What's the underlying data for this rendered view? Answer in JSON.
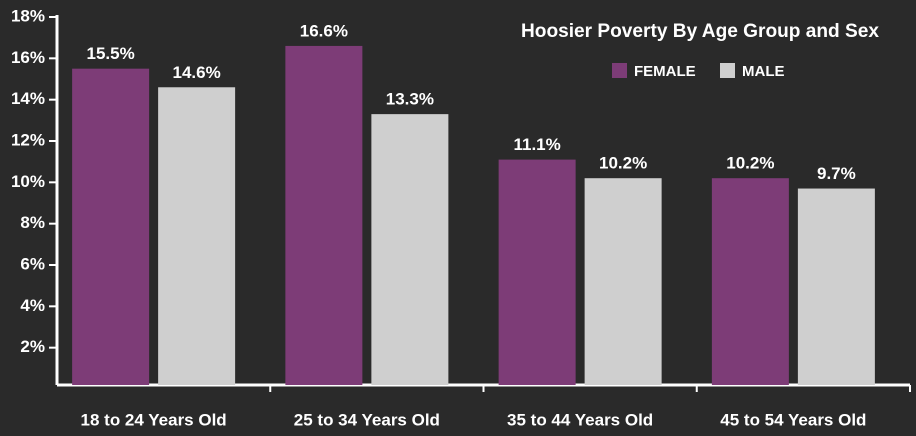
{
  "chart_data": {
    "type": "bar",
    "title": "Hoosier Poverty By Age Group and Sex",
    "categories": [
      "18 to 24 Years Old",
      "25 to 34 Years Old",
      "35 to 44 Years Old",
      "45 to 54 Years Old"
    ],
    "series": [
      {
        "name": "FEMALE",
        "color": "#7d3c77",
        "values": [
          15.5,
          16.6,
          11.1,
          10.2
        ],
        "value_labels": [
          "15.5%",
          "16.6%",
          "11.1%",
          "10.2%"
        ]
      },
      {
        "name": "MALE",
        "color": "#cfcfcf",
        "values": [
          14.6,
          13.3,
          10.2,
          9.7
        ],
        "value_labels": [
          "14.6%",
          "13.3%",
          "10.2%",
          "9.7%"
        ]
      }
    ],
    "ylim": [
      0,
      18
    ],
    "yticks": [
      {
        "value": 2,
        "label": "2%"
      },
      {
        "value": 4,
        "label": "4%"
      },
      {
        "value": 6,
        "label": "6%"
      },
      {
        "value": 8,
        "label": "8%"
      },
      {
        "value": 10,
        "label": "10%"
      },
      {
        "value": 12,
        "label": "12%"
      },
      {
        "value": 14,
        "label": "14%"
      },
      {
        "value": 16,
        "label": "16%"
      },
      {
        "value": 18,
        "label": "18%"
      }
    ],
    "legend": "top-right",
    "grid": false
  }
}
